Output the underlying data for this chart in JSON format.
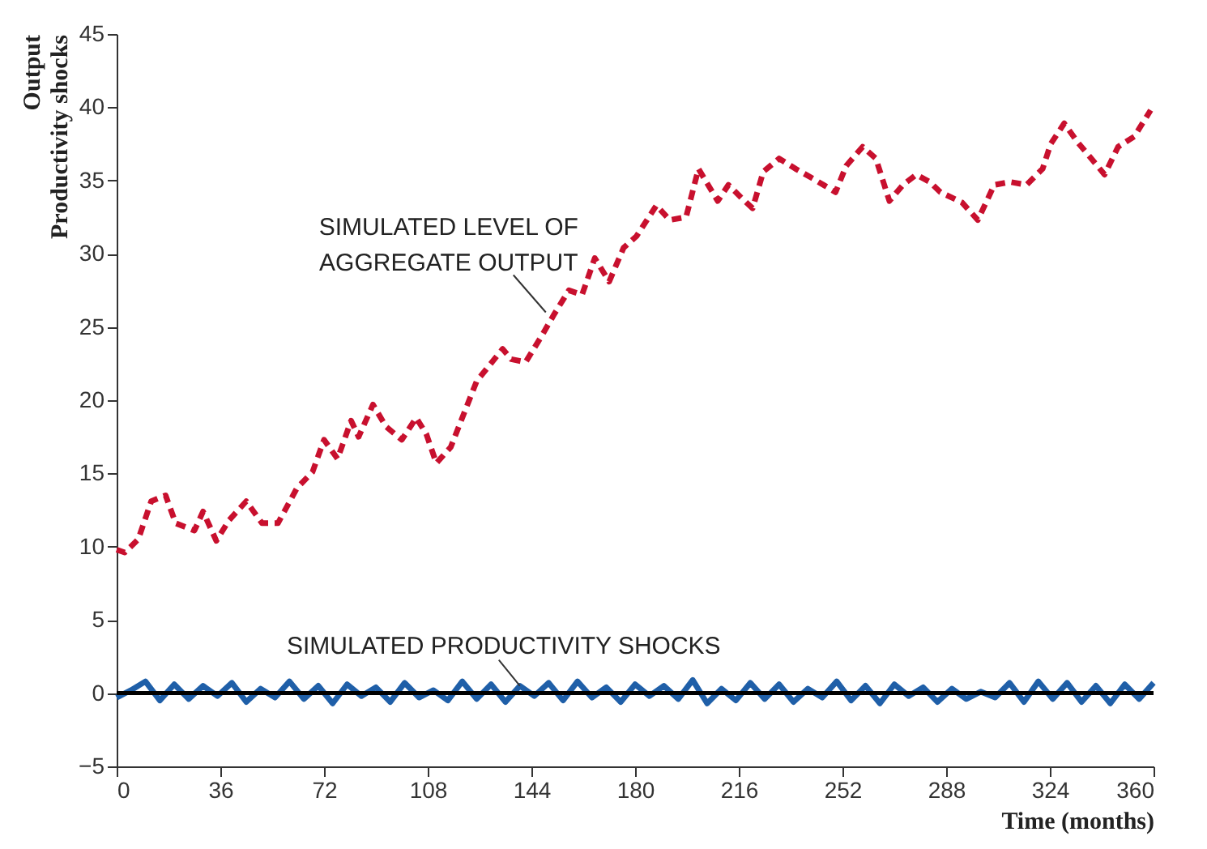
{
  "chart_data": {
    "type": "line",
    "xlabel": "Time (months)",
    "ylabel": "Output\nProductivity shocks",
    "xlim": [
      0,
      360
    ],
    "xticks": [
      0,
      36,
      72,
      108,
      144,
      180,
      216,
      252,
      288,
      324,
      360
    ],
    "ylim": [
      -5,
      45
    ],
    "yticks": [
      -5,
      0,
      5,
      10,
      15,
      20,
      25,
      30,
      35,
      40,
      45
    ],
    "grid": false,
    "ref_lines": [
      {
        "axis": "y",
        "value": 0,
        "color": "#000000",
        "line_style": "solid"
      }
    ],
    "annotations": [
      {
        "text": "SIMULATED LEVEL OF\nAGGREGATE OUTPUT",
        "x": 149,
        "y": 26
      },
      {
        "text": "SIMULATED PRODUCTIVITY SHOCKS",
        "x": 140,
        "y": 0.5
      }
    ],
    "series": [
      {
        "color": "#c8102e",
        "line_style": "dashed",
        "x": [
          0,
          2.8,
          7.5,
          12,
          17,
          20.5,
          27,
          30,
          34.6,
          39,
          45,
          50.5,
          56,
          62.6,
          68,
          72,
          76.7,
          81.4,
          84,
          89,
          93.5,
          99,
          104,
          107.5,
          111,
          116,
          120.6,
          125,
          134,
          137,
          142,
          147.6,
          152,
          157,
          161.6,
          166,
          171,
          176,
          180.5,
          187.4,
          192,
          197.7,
          202,
          208.7,
          212.4,
          217,
          220.8,
          224.5,
          230,
          235.7,
          242,
          249.6,
          253.3,
          259,
          263.6,
          268.3,
          273,
          277.6,
          282.3,
          286,
          293.5,
          299,
          304.7,
          310.3,
          315.9,
          321.5,
          324.3,
          329,
          333.7,
          338.4,
          343,
          347.7,
          353.3,
          359
        ],
        "values": [
          9.8,
          9.6,
          10.5,
          13.1,
          13.5,
          11.6,
          11.1,
          12.4,
          10.4,
          11.8,
          13.1,
          11.6,
          11.6,
          14.0,
          15.1,
          17.3,
          16.0,
          18.6,
          17.5,
          19.7,
          18.2,
          17.3,
          18.8,
          17.7,
          15.7,
          16.8,
          19.1,
          21.3,
          23.5,
          22.8,
          22.6,
          24.4,
          25.9,
          27.5,
          27.2,
          29.7,
          28.1,
          30.4,
          31.2,
          33.3,
          32.3,
          32.5,
          35.8,
          33.6,
          34.7,
          33.8,
          33.1,
          35.6,
          36.5,
          35.8,
          35.1,
          34.2,
          36.0,
          37.3,
          36.5,
          33.6,
          34.7,
          35.4,
          34.9,
          34.2,
          33.5,
          32.3,
          34.7,
          34.9,
          34.7,
          35.8,
          37.5,
          38.9,
          37.6,
          36.5,
          35.4,
          37.3,
          38.0,
          39.8
        ]
      },
      {
        "color": "#1f5fa8",
        "line_style": "solid",
        "x": [
          0,
          5,
          10,
          15,
          20,
          25,
          30,
          35,
          40,
          45,
          50,
          55,
          60,
          65,
          70,
          75,
          80,
          85,
          90,
          95,
          100,
          105,
          110,
          115,
          120,
          125,
          130,
          135,
          140,
          145,
          150,
          155,
          160,
          165,
          170,
          175,
          180,
          185,
          190,
          195,
          200,
          205,
          210,
          215,
          220,
          225,
          230,
          235,
          240,
          245,
          250,
          255,
          260,
          265,
          270,
          275,
          280,
          285,
          290,
          295,
          300,
          305,
          310,
          315,
          320,
          325,
          330,
          335,
          340,
          345,
          350,
          355,
          360
        ],
        "values": [
          -0.3,
          0.2,
          0.8,
          -0.5,
          0.6,
          -0.4,
          0.5,
          -0.2,
          0.7,
          -0.6,
          0.3,
          -0.3,
          0.8,
          -0.4,
          0.5,
          -0.7,
          0.6,
          -0.2,
          0.4,
          -0.6,
          0.7,
          -0.3,
          0.2,
          -0.5,
          0.8,
          -0.4,
          0.6,
          -0.6,
          0.5,
          -0.2,
          0.7,
          -0.5,
          0.8,
          -0.3,
          0.4,
          -0.6,
          0.6,
          -0.2,
          0.5,
          -0.4,
          0.9,
          -0.7,
          0.3,
          -0.5,
          0.7,
          -0.4,
          0.6,
          -0.6,
          0.3,
          -0.3,
          0.8,
          -0.5,
          0.5,
          -0.7,
          0.6,
          -0.2,
          0.4,
          -0.6,
          0.3,
          -0.4,
          0.1,
          -0.3,
          0.7,
          -0.6,
          0.8,
          -0.4,
          0.7,
          -0.6,
          0.5,
          -0.7,
          0.6,
          -0.4,
          0.7
        ]
      }
    ]
  }
}
